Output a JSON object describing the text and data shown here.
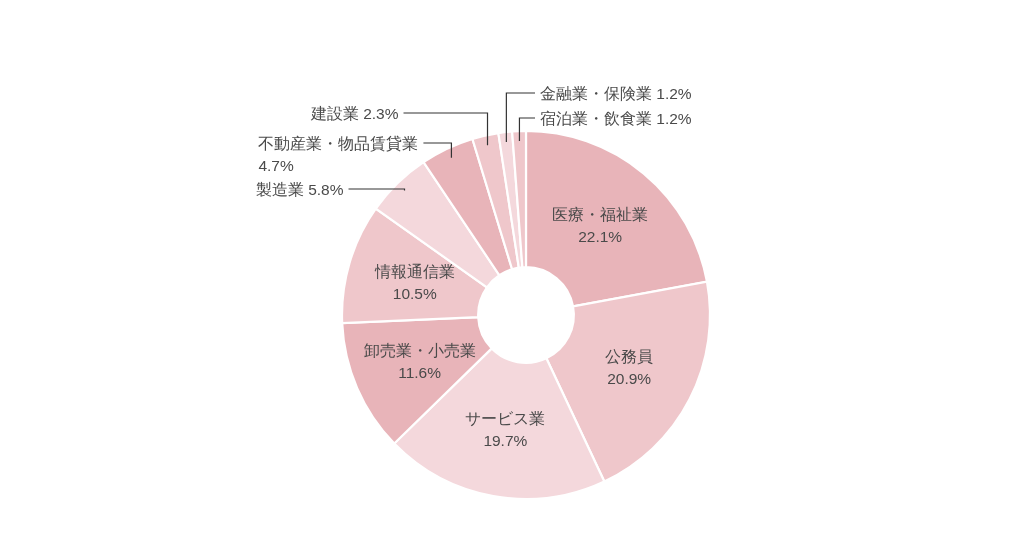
{
  "chart_data": {
    "type": "donut",
    "categories": [
      "医療・福祉業",
      "公務員",
      "サービス業",
      "卸売業・小売業",
      "情報通信業",
      "製造業",
      "不動産業・物品賃貸業",
      "建設業",
      "金融業・保険業",
      "宿泊業・飲食業"
    ],
    "values": [
      22.1,
      20.9,
      19.7,
      11.6,
      10.5,
      5.8,
      4.7,
      2.3,
      1.2,
      1.2
    ],
    "value_labels": [
      "22.1%",
      "20.9%",
      "19.7%",
      "11.6%",
      "10.5%",
      "5.8%",
      "4.7%",
      "2.3%",
      "1.2%",
      "1.2%"
    ],
    "colors": [
      "#e8b4b9",
      "#efc7cb",
      "#f4d8dc",
      "#e8b4b9",
      "#efc7cb",
      "#f4d8dc",
      "#e8b4b9",
      "#efc7cb",
      "#f4d8dc",
      "#efc7cb"
    ]
  }
}
